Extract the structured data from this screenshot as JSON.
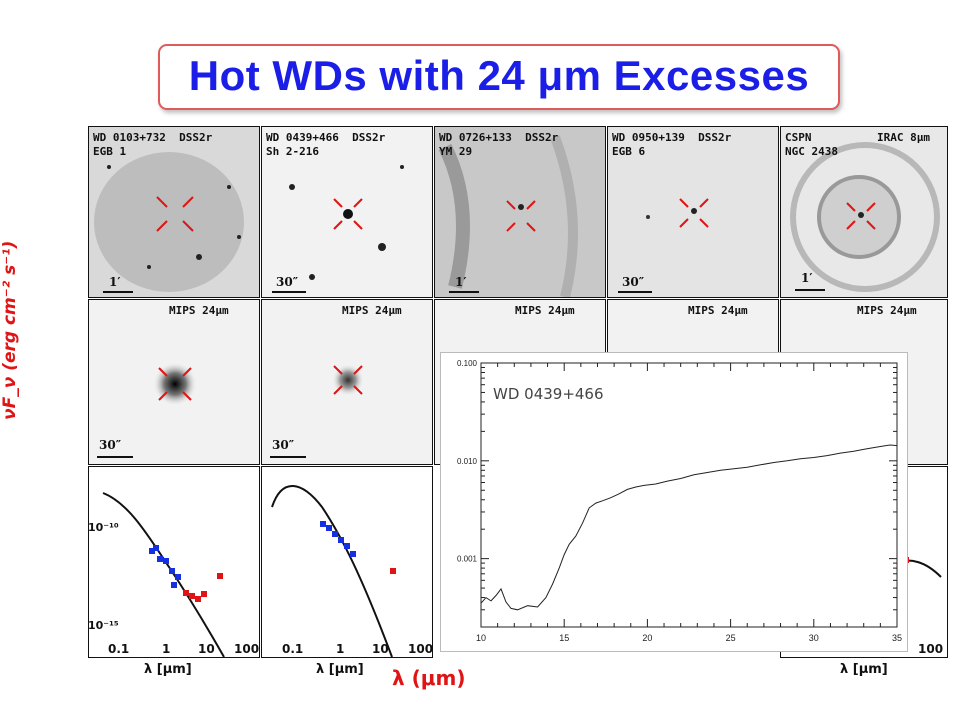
{
  "slide": {
    "title": "Hot WDs with 24 μm Excesses",
    "ylabel": "νF_ν (erg cm⁻² s⁻¹)",
    "xlabel_big": "λ (μm)"
  },
  "panels_top": [
    {
      "id": "WD 0103+732  DSS2r",
      "sub": "EGB 1",
      "scale": "1′"
    },
    {
      "id": "WD 0439+466  DSS2r",
      "sub": "Sh 2-216",
      "scale": "30″"
    },
    {
      "id": "WD 0726+133  DSS2r",
      "sub": "YM 29",
      "scale": "1′"
    },
    {
      "id": "WD 0950+139  DSS2r",
      "sub": "EGB 6",
      "scale": "30″"
    },
    {
      "id": "CSPN",
      "id2": "IRAC 8μm",
      "sub": "NGC 2438",
      "scale": "1′"
    }
  ],
  "panels_mid": [
    {
      "label": "MIPS 24μm",
      "scale": "30″"
    },
    {
      "label": "MIPS 24μm",
      "scale": "30″"
    },
    {
      "label": "MIPS 24μm"
    },
    {
      "label": "MIPS 24μm"
    },
    {
      "label": "MIPS 24μm"
    }
  ],
  "sed_axis": {
    "x_ticks": [
      "0.1",
      "1",
      "10",
      "100"
    ],
    "y_ticks": [
      "10⁻¹⁰",
      "10⁻¹⁵"
    ],
    "xlabel": "λ [μm]"
  },
  "colors": {
    "title": "#1a1ee6",
    "accent": "#e01414",
    "blue_pts": "#1530e0",
    "red_pts": "#e01414"
  },
  "chart_data": {
    "type": "line",
    "title": "WD 0439+466",
    "xlabel": "",
    "ylabel": "",
    "x_ticks": [
      "10",
      "15",
      "20",
      "25",
      "30",
      "35"
    ],
    "y_ticks": [
      "0.100",
      "0.010",
      "0.001"
    ],
    "xlim": [
      10,
      35
    ],
    "ylim": [
      0.0002,
      0.1
    ],
    "yscale": "log",
    "series": [
      {
        "x": [
          10.0,
          10.3,
          10.6,
          10.9,
          11.2,
          11.5,
          11.8,
          12.2,
          12.8,
          13.4,
          13.9,
          14.3,
          14.7,
          15.0,
          15.3,
          15.7,
          16.1,
          16.5,
          16.9,
          17.3,
          17.8,
          18.3,
          18.8,
          19.3,
          19.8,
          20.5,
          21.2,
          22.0,
          22.8,
          23.6,
          24.4,
          25.2,
          26.0,
          26.8,
          27.6,
          28.4,
          29.2,
          30.0,
          30.8,
          31.6,
          32.4,
          33.2,
          34.0,
          34.6,
          35.0
        ],
        "y": [
          0.00035,
          0.0004,
          0.00037,
          0.00042,
          0.00049,
          0.00036,
          0.00031,
          0.0003,
          0.00033,
          0.00032,
          0.0004,
          0.00055,
          0.0008,
          0.0011,
          0.0014,
          0.0017,
          0.0023,
          0.0033,
          0.0037,
          0.0039,
          0.0042,
          0.0046,
          0.0051,
          0.0054,
          0.0056,
          0.0058,
          0.0062,
          0.0066,
          0.0072,
          0.0076,
          0.008,
          0.0083,
          0.0086,
          0.0091,
          0.0096,
          0.01,
          0.0105,
          0.0108,
          0.0113,
          0.012,
          0.0125,
          0.0133,
          0.014,
          0.0145,
          0.0143
        ]
      }
    ]
  }
}
